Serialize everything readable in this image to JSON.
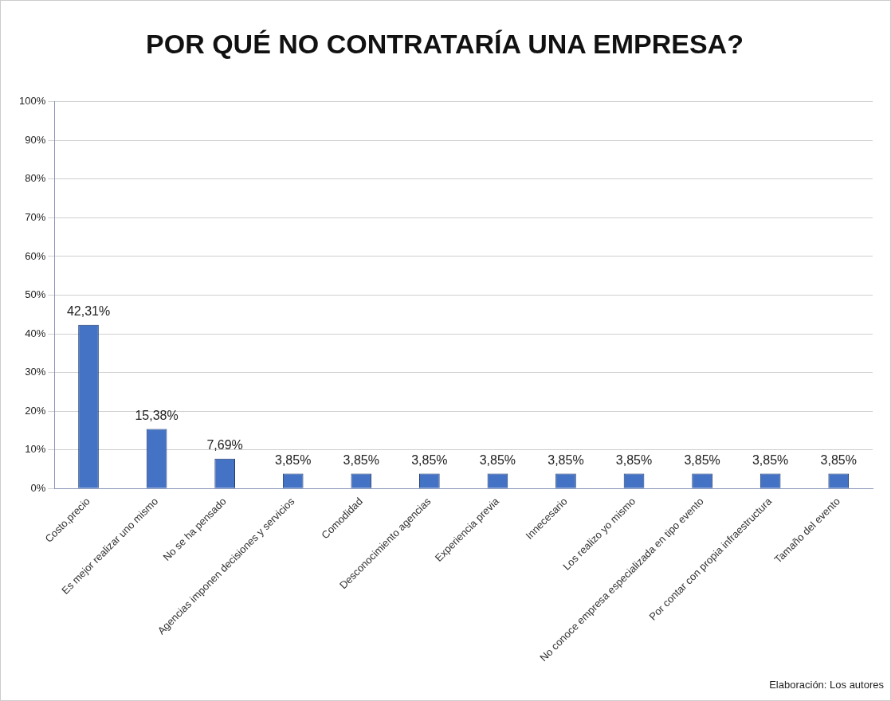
{
  "chart_data": {
    "type": "bar",
    "title": "POR QUÉ NO CONTRATARÍA UNA EMPRESA?",
    "categories": [
      "Costo,precio",
      "Es mejor realizar uno mismo",
      "No se ha pensado",
      "Agencias imponen decisiones y servicios",
      "Comodidad",
      "Desconocimiento agencias",
      "Experiencia previa",
      "Innecesario",
      "Los realizo yo mismo",
      "No conoce empresa especializada en tipo evento",
      "Por contar con propia infraestructura",
      "Tamaño del evento"
    ],
    "values": [
      42.31,
      15.38,
      7.69,
      3.85,
      3.85,
      3.85,
      3.85,
      3.85,
      3.85,
      3.85,
      3.85,
      3.85
    ],
    "value_labels": [
      "42,31%",
      "15,38%",
      "7,69%",
      "3,85%",
      "3,85%",
      "3,85%",
      "3,85%",
      "3,85%",
      "3,85%",
      "3,85%",
      "3,85%",
      "3,85%"
    ],
    "color": "#4472c4",
    "ylim": [
      0,
      100
    ],
    "yticks": [
      {
        "value": 0,
        "label": "0%"
      },
      {
        "value": 10,
        "label": "10%"
      },
      {
        "value": 20,
        "label": "20%"
      },
      {
        "value": 30,
        "label": "30%"
      },
      {
        "value": 40,
        "label": "40%"
      },
      {
        "value": 50,
        "label": "50%"
      },
      {
        "value": 60,
        "label": "60%"
      },
      {
        "value": 70,
        "label": "70%"
      },
      {
        "value": 80,
        "label": "80%"
      },
      {
        "value": 90,
        "label": "90%"
      },
      {
        "value": 100,
        "label": "100%"
      }
    ],
    "grid": "y",
    "annotations": [
      "Elaboración: Los autores"
    ]
  }
}
